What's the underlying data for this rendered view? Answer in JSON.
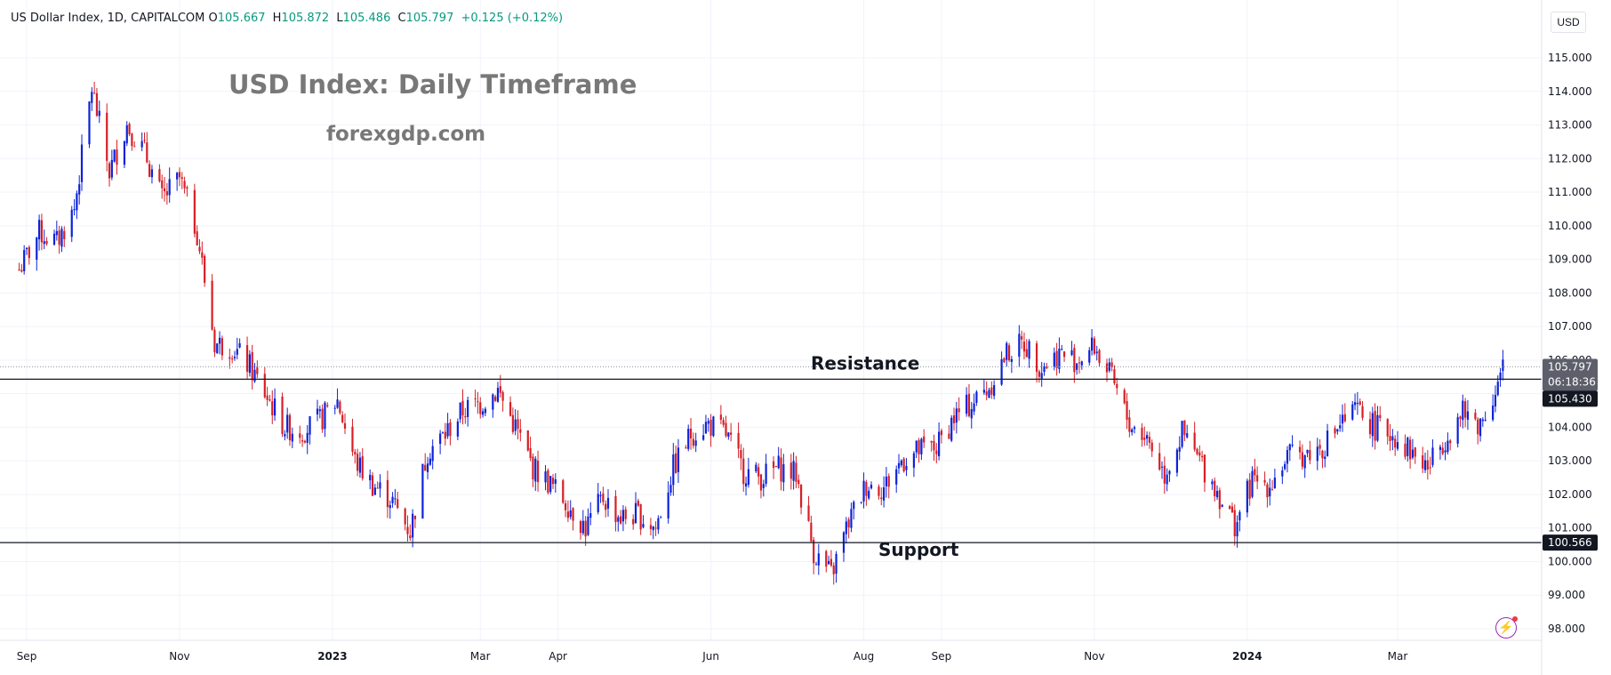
{
  "header": {
    "symbol": "US Dollar Index, 1D, CAPITALCOM",
    "open_label": "O",
    "open": "105.667",
    "high_label": "H",
    "high": "105.872",
    "low_label": "L",
    "low": "105.486",
    "close_label": "C",
    "close": "105.797",
    "change": "+0.125 (+0.12%)"
  },
  "currency": "USD",
  "colors": {
    "up": "#0c22d8",
    "down": "#d61f26",
    "level_line": "#131722",
    "grid": "#f0f3fa",
    "text": "#131722",
    "badge_dark": "#131722",
    "badge_grey": "#5d606b",
    "change_green": "#089981"
  },
  "chart_data": {
    "type": "candlestick",
    "title": "USD Index: Daily Timeframe",
    "subtitle": "forexgdp.com",
    "ylim": [
      97.6,
      115.9
    ],
    "y_ticks": [
      "98.000",
      "99.000",
      "100.000",
      "101.000",
      "102.000",
      "103.000",
      "104.000",
      "105.000",
      "106.000",
      "107.000",
      "108.000",
      "109.000",
      "110.000",
      "111.000",
      "112.000",
      "113.000",
      "114.000",
      "115.000"
    ],
    "x_ticks": [
      "Sep",
      "Nov",
      "2023",
      "Mar",
      "Apr",
      "Jun",
      "Aug",
      "Sep",
      "Nov",
      "2024",
      "Mar"
    ],
    "levels": [
      {
        "label": "Resistance",
        "value": 105.43
      },
      {
        "label": "Support",
        "value": 100.566
      }
    ],
    "last_price": "105.797",
    "countdown": "06:18:36",
    "price_path": [
      [
        "2022-08-29",
        108.7
      ],
      [
        "2022-09-06",
        109.8
      ],
      [
        "2022-09-13",
        109.5
      ],
      [
        "2022-09-20",
        110.5
      ],
      [
        "2022-09-27",
        114.1
      ],
      [
        "2022-10-04",
        111.6
      ],
      [
        "2022-10-11",
        113.0
      ],
      [
        "2022-10-18",
        112.2
      ],
      [
        "2022-10-25",
        110.8
      ],
      [
        "2022-11-01",
        111.4
      ],
      [
        "2022-11-08",
        109.8
      ],
      [
        "2022-11-15",
        106.5
      ],
      [
        "2022-11-22",
        106.4
      ],
      [
        "2022-11-29",
        105.8
      ],
      [
        "2022-12-06",
        104.9
      ],
      [
        "2022-12-13",
        104.0
      ],
      [
        "2022-12-20",
        103.9
      ],
      [
        "2022-12-27",
        104.2
      ],
      [
        "2023-01-03",
        104.8
      ],
      [
        "2023-01-10",
        103.0
      ],
      [
        "2023-01-17",
        102.3
      ],
      [
        "2023-01-24",
        101.9
      ],
      [
        "2023-02-01",
        100.9
      ],
      [
        "2023-02-08",
        103.3
      ],
      [
        "2023-02-15",
        103.8
      ],
      [
        "2023-02-22",
        104.5
      ],
      [
        "2023-03-01",
        104.7
      ],
      [
        "2023-03-08",
        105.1
      ],
      [
        "2023-03-15",
        104.0
      ],
      [
        "2023-03-22",
        102.8
      ],
      [
        "2023-03-29",
        102.3
      ],
      [
        "2023-04-05",
        101.7
      ],
      [
        "2023-04-12",
        101.0
      ],
      [
        "2023-04-19",
        101.9
      ],
      [
        "2023-04-26",
        101.3
      ],
      [
        "2023-05-03",
        101.4
      ],
      [
        "2023-05-10",
        101.0
      ],
      [
        "2023-05-17",
        102.8
      ],
      [
        "2023-05-24",
        103.8
      ],
      [
        "2023-05-31",
        104.1
      ],
      [
        "2023-06-07",
        103.8
      ],
      [
        "2023-06-14",
        102.7
      ],
      [
        "2023-06-21",
        102.5
      ],
      [
        "2023-06-28",
        102.8
      ],
      [
        "2023-07-05",
        102.6
      ],
      [
        "2023-07-12",
        100.3
      ],
      [
        "2023-07-19",
        99.6
      ],
      [
        "2023-07-26",
        101.2
      ],
      [
        "2023-08-02",
        102.3
      ],
      [
        "2023-08-09",
        102.2
      ],
      [
        "2023-08-16",
        103.0
      ],
      [
        "2023-08-23",
        103.3
      ],
      [
        "2023-08-30",
        103.4
      ],
      [
        "2023-09-06",
        104.3
      ],
      [
        "2023-09-13",
        104.7
      ],
      [
        "2023-09-20",
        105.2
      ],
      [
        "2023-09-27",
        106.2
      ],
      [
        "2023-10-04",
        106.5
      ],
      [
        "2023-10-11",
        105.8
      ],
      [
        "2023-10-18",
        106.2
      ],
      [
        "2023-10-25",
        106.0
      ],
      [
        "2023-11-01",
        106.4
      ],
      [
        "2023-11-08",
        105.4
      ],
      [
        "2023-11-15",
        104.1
      ],
      [
        "2023-11-22",
        103.7
      ],
      [
        "2023-11-29",
        102.6
      ],
      [
        "2023-12-06",
        103.8
      ],
      [
        "2023-12-13",
        103.0
      ],
      [
        "2023-12-20",
        102.1
      ],
      [
        "2023-12-27",
        101.1
      ],
      [
        "2024-01-03",
        102.4
      ],
      [
        "2024-01-10",
        102.3
      ],
      [
        "2024-01-17",
        103.1
      ],
      [
        "2024-01-24",
        103.2
      ],
      [
        "2024-01-31",
        103.4
      ],
      [
        "2024-02-07",
        104.1
      ],
      [
        "2024-02-14",
        104.5
      ],
      [
        "2024-02-21",
        104.0
      ],
      [
        "2024-02-28",
        103.8
      ],
      [
        "2024-03-06",
        103.3
      ],
      [
        "2024-03-13",
        102.8
      ],
      [
        "2024-03-20",
        103.7
      ],
      [
        "2024-03-27",
        104.4
      ],
      [
        "2024-04-03",
        104.1
      ],
      [
        "2024-04-10",
        105.3
      ],
      [
        "2024-04-12",
        105.8
      ]
    ]
  }
}
